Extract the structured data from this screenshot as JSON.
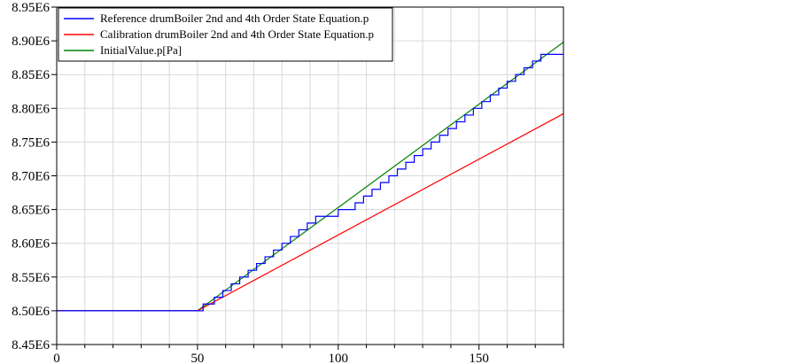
{
  "chart_data": {
    "type": "line",
    "title": "",
    "xlabel": "",
    "ylabel": "",
    "xlim": [
      0,
      180
    ],
    "ylim": [
      8450000,
      8950000
    ],
    "x_ticks": [
      0,
      50,
      100,
      150
    ],
    "x_tick_labels": [
      "0",
      "50",
      "100",
      "150"
    ],
    "y_ticks": [
      8450000,
      8500000,
      8550000,
      8600000,
      8650000,
      8700000,
      8750000,
      8800000,
      8850000,
      8900000,
      8950000
    ],
    "y_tick_labels": [
      "8.45E6",
      "8.50E6",
      "8.55E6",
      "8.60E6",
      "8.65E6",
      "8.70E6",
      "8.75E6",
      "8.80E6",
      "8.85E6",
      "8.90E6",
      "8.95E6"
    ],
    "grid": true,
    "legend_position": "top-left",
    "series": [
      {
        "name": "Reference drumBoiler 2nd and 4th Order State Equation.p",
        "color": "#0000ff",
        "style": "step",
        "x": [
          0,
          50,
          52,
          52,
          56,
          56,
          59,
          59,
          62,
          62,
          65,
          65,
          68,
          68,
          71,
          71,
          74,
          74,
          77,
          77,
          80,
          80,
          83,
          83,
          86,
          86,
          89,
          89,
          92,
          92,
          100,
          100,
          106,
          106,
          109,
          109,
          112,
          112,
          115,
          115,
          118,
          118,
          121,
          121,
          124,
          124,
          127,
          127,
          130,
          130,
          133,
          133,
          136,
          136,
          139,
          139,
          142,
          142,
          145,
          145,
          148,
          148,
          151,
          151,
          154,
          154,
          157,
          157,
          160,
          160,
          163,
          163,
          166,
          166,
          169,
          169,
          172,
          172,
          180
        ],
        "y": [
          8500000,
          8500000,
          8500000,
          8510000,
          8510000,
          8520000,
          8520000,
          8530000,
          8530000,
          8540000,
          8540000,
          8550000,
          8550000,
          8560000,
          8560000,
          8570000,
          8570000,
          8580000,
          8580000,
          8590000,
          8590000,
          8600000,
          8600000,
          8610000,
          8610000,
          8620000,
          8620000,
          8630000,
          8630000,
          8640000,
          8640000,
          8650000,
          8650000,
          8660000,
          8660000,
          8670000,
          8670000,
          8680000,
          8680000,
          8690000,
          8690000,
          8700000,
          8700000,
          8710000,
          8710000,
          8720000,
          8720000,
          8730000,
          8730000,
          8740000,
          8740000,
          8750000,
          8750000,
          8760000,
          8760000,
          8770000,
          8770000,
          8780000,
          8780000,
          8790000,
          8790000,
          8800000,
          8800000,
          8810000,
          8810000,
          8820000,
          8820000,
          8830000,
          8830000,
          8840000,
          8840000,
          8850000,
          8850000,
          8860000,
          8860000,
          8870000,
          8870000,
          8880000,
          8880000
        ]
      },
      {
        "name": "Calibration drumBoiler 2nd and 4th Order State Equation.p",
        "color": "#ff0000",
        "style": "line",
        "x": [
          0,
          50,
          180
        ],
        "y": [
          8500000,
          8500000,
          8792000
        ]
      },
      {
        "name": "InitialValue.p[Pa]",
        "color": "#008000",
        "style": "line",
        "x": [
          0,
          50,
          180
        ],
        "y": [
          8500000,
          8500000,
          8898000
        ]
      }
    ]
  }
}
